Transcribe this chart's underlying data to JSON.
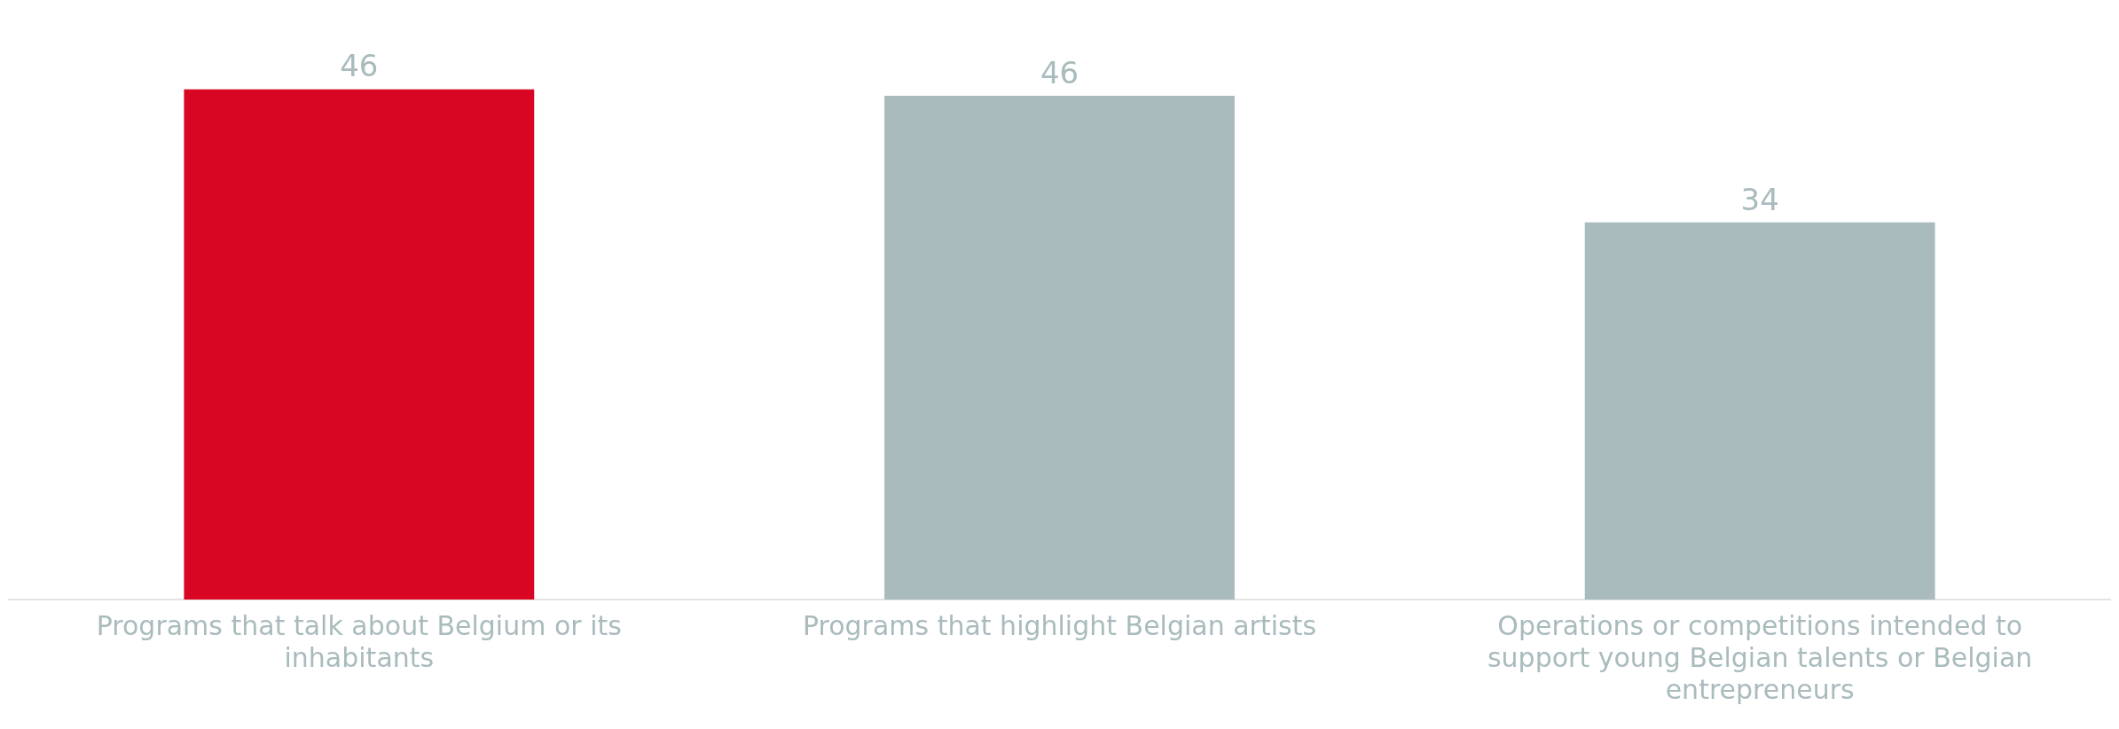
{
  "chart_data": {
    "type": "bar",
    "categories": [
      "Programs that talk about Belgium or its inhabitants",
      "Programs that highlight Belgian artists",
      "Operations or competitions intended to support young Belgian talents or Belgian entrepreneurs"
    ],
    "values": [
      46.4,
      45.8,
      34.3
    ],
    "value_labels": [
      "46",
      "46",
      "34"
    ],
    "colors": [
      "#d90623",
      "#a9bbbd",
      "#a9bbbd"
    ],
    "grid": false,
    "legend": false
  }
}
